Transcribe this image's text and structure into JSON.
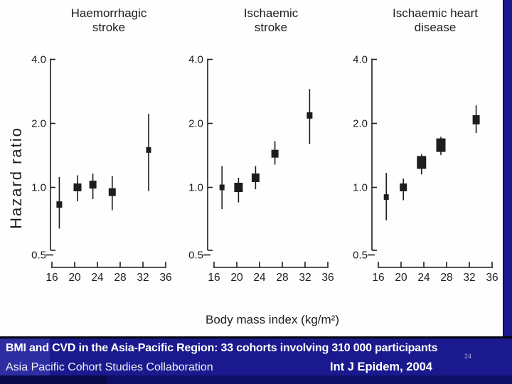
{
  "slide": {
    "footer": {
      "title": "BMI and CVD in the Asia-Pacific Region: 33 cohorts involving 310 000 participants",
      "source": "Asia Pacific Cohort Studies Collaboration",
      "citation": "Int J Epidem, 2004",
      "page_number": "24"
    },
    "colors": {
      "banner_base": "#1a1a8e",
      "banner_left_block": "#2e2ea3",
      "banner_bottom_strip": "#0e0e66",
      "banner_bottom_left": "#0a0a48",
      "ink": "#1d1d1d",
      "background": "#fefefe",
      "text_on_banner": "#ffffff"
    }
  },
  "chart_data": {
    "type": "scatter",
    "subtype": "forest-plot-squares-with-ci",
    "ylabel": "Hazard ratio",
    "xlabel": "Body mass index (kg/m²)",
    "yscale": "log",
    "ylim": [
      0.5,
      4.0
    ],
    "xlim": [
      16,
      36
    ],
    "yticks": [
      "4.0",
      "2.0",
      "1.0",
      "0.5"
    ],
    "ytick_values": [
      4.0,
      2.0,
      1.0,
      0.5
    ],
    "xticks": [
      "16",
      "20",
      "24",
      "28",
      "32",
      "36"
    ],
    "xtick_values": [
      16,
      20,
      24,
      28,
      32,
      36
    ],
    "grid": false,
    "legend": "none",
    "marker_note": "square area proportional to statistical weight; vertical line = confidence interval",
    "panels": [
      {
        "title_lines": [
          "Haemorrhagic",
          "stroke"
        ],
        "points": [
          {
            "bmi": 17.3,
            "hr": 0.83,
            "ci_low": 0.64,
            "ci_high": 1.12,
            "mw": 8,
            "mh": 9
          },
          {
            "bmi": 20.5,
            "hr": 1.0,
            "ci_low": 0.86,
            "ci_high": 1.14,
            "mw": 11,
            "mh": 11
          },
          {
            "bmi": 23.2,
            "hr": 1.03,
            "ci_low": 0.88,
            "ci_high": 1.16,
            "mw": 10,
            "mh": 11
          },
          {
            "bmi": 26.6,
            "hr": 0.95,
            "ci_low": 0.78,
            "ci_high": 1.13,
            "mw": 10,
            "mh": 11
          },
          {
            "bmi": 33.0,
            "hr": 1.5,
            "ci_low": 0.96,
            "ci_high": 2.22,
            "mw": 7,
            "mh": 8
          }
        ]
      },
      {
        "title_lines": [
          "Ischaemic",
          "stroke"
        ],
        "points": [
          {
            "bmi": 17.4,
            "hr": 1.0,
            "ci_low": 0.79,
            "ci_high": 1.26,
            "mw": 7,
            "mh": 8
          },
          {
            "bmi": 20.3,
            "hr": 1.0,
            "ci_low": 0.85,
            "ci_high": 1.11,
            "mw": 12,
            "mh": 13
          },
          {
            "bmi": 23.3,
            "hr": 1.11,
            "ci_low": 0.98,
            "ci_high": 1.26,
            "mw": 11,
            "mh": 12
          },
          {
            "bmi": 26.7,
            "hr": 1.44,
            "ci_low": 1.28,
            "ci_high": 1.65,
            "mw": 10,
            "mh": 11
          },
          {
            "bmi": 32.8,
            "hr": 2.18,
            "ci_low": 1.6,
            "ci_high": 2.9,
            "mw": 8,
            "mh": 9
          }
        ]
      },
      {
        "title_lines": [
          "Ischaemic heart",
          "disease"
        ],
        "points": [
          {
            "bmi": 17.4,
            "hr": 0.9,
            "ci_low": 0.7,
            "ci_high": 1.17,
            "mw": 7,
            "mh": 8
          },
          {
            "bmi": 20.4,
            "hr": 1.0,
            "ci_low": 0.87,
            "ci_high": 1.1,
            "mw": 10,
            "mh": 11
          },
          {
            "bmi": 23.6,
            "hr": 1.31,
            "ci_low": 1.15,
            "ci_high": 1.43,
            "mw": 13,
            "mh": 18
          },
          {
            "bmi": 27.0,
            "hr": 1.58,
            "ci_low": 1.42,
            "ci_high": 1.73,
            "mw": 13,
            "mh": 19
          },
          {
            "bmi": 33.2,
            "hr": 2.08,
            "ci_low": 1.8,
            "ci_high": 2.43,
            "mw": 10,
            "mh": 13
          }
        ]
      }
    ]
  }
}
